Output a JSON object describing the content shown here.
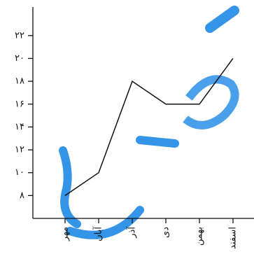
{
  "chart_data": {
    "type": "line",
    "categories": [
      "مهر",
      "آبان",
      "آذر",
      "دی",
      "بهمن",
      "اسفند"
    ],
    "values": [
      8,
      10,
      18,
      16,
      16,
      20
    ],
    "color": "#111111",
    "ylim": [
      6,
      24.5
    ],
    "yticks": [
      {
        "value": 8,
        "label": "۸"
      },
      {
        "value": 10,
        "label": "۱۰"
      },
      {
        "value": 12,
        "label": "۱۲"
      },
      {
        "value": 14,
        "label": "۱۴"
      },
      {
        "value": 16,
        "label": "۱۶"
      },
      {
        "value": 18,
        "label": "۱۸"
      },
      {
        "value": 20,
        "label": "۲۰"
      },
      {
        "value": 22,
        "label": "۲۲"
      }
    ]
  }
}
